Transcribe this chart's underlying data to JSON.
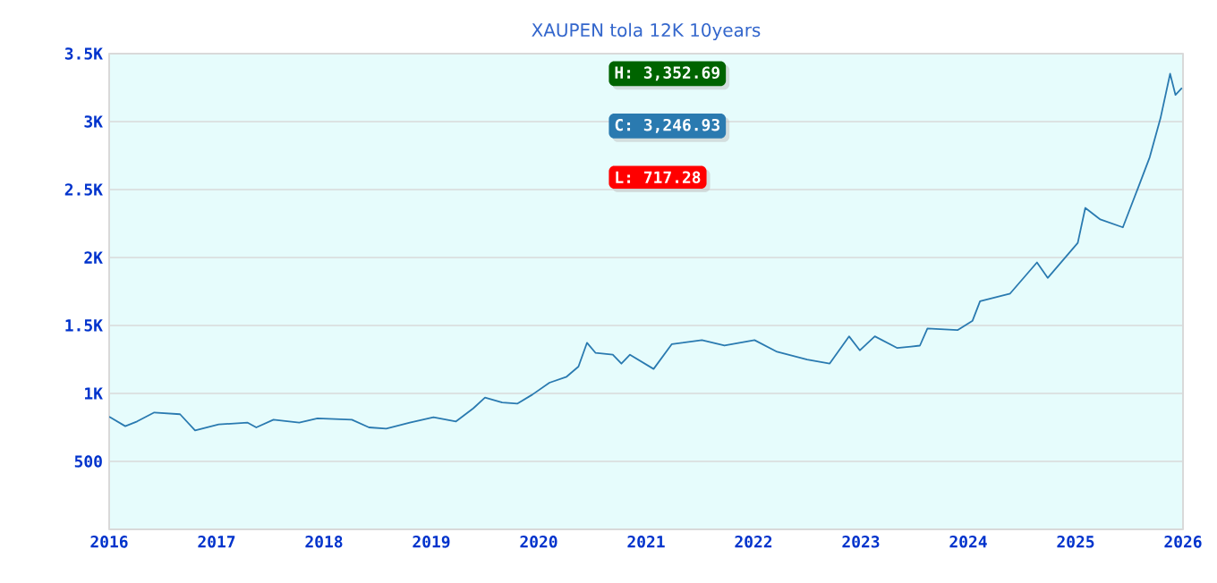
{
  "chart_data": {
    "type": "line",
    "title": "XAUPEN tola 12K 10years",
    "xlim": [
      2016,
      2026
    ],
    "xticks": [
      2016,
      2017,
      2018,
      2019,
      2020,
      2021,
      2022,
      2023,
      2024,
      2025,
      2026
    ],
    "ylim": [
      0,
      3500
    ],
    "yticks": [
      500,
      {
        "value": 1000,
        "label": "1K"
      },
      {
        "value": 1500,
        "label": "1.5K"
      },
      {
        "value": 2000,
        "label": "2K"
      },
      {
        "value": 2500,
        "label": "2.5K"
      },
      {
        "value": 3000,
        "label": "3K"
      },
      {
        "value": 3500,
        "label": "3.5K"
      }
    ],
    "grid": "y",
    "marker": "none",
    "line_style": "solid",
    "annotations": [
      "H: 3,352.69",
      "C: 3,246.93",
      "L: 717.28"
    ],
    "series": [
      {
        "color": "#2a7ab0",
        "x": [
          2016.0,
          2016.15,
          2016.26,
          2016.42,
          2016.66,
          2016.8,
          2017.02,
          2017.29,
          2017.37,
          2017.53,
          2017.77,
          2017.94,
          2018.26,
          2018.42,
          2018.58,
          2018.8,
          2019.02,
          2019.23,
          2019.39,
          2019.5,
          2019.66,
          2019.8,
          2019.94,
          2020.1,
          2020.26,
          2020.37,
          2020.45,
          2020.53,
          2020.69,
          2020.77,
          2020.85,
          2021.07,
          2021.24,
          2021.52,
          2021.73,
          2022.01,
          2022.22,
          2022.5,
          2022.71,
          2022.89,
          2022.99,
          2023.13,
          2023.34,
          2023.55,
          2023.62,
          2023.9,
          2024.04,
          2024.11,
          2024.39,
          2024.64,
          2024.74,
          2025.02,
          2025.09,
          2025.23,
          2025.44,
          2025.58,
          2025.69,
          2025.79,
          2025.88,
          2025.93,
          2025.99
        ],
        "values": [
          829,
          759,
          794,
          860,
          847,
          728,
          772,
          785,
          750,
          807,
          785,
          816,
          807,
          750,
          741,
          785,
          825,
          794,
          890,
          969,
          934,
          925,
          991,
          1079,
          1123,
          1197,
          1373,
          1298,
          1285,
          1219,
          1285,
          1180,
          1363,
          1392,
          1352,
          1392,
          1306,
          1249,
          1220,
          1420,
          1317,
          1420,
          1334,
          1352,
          1478,
          1466,
          1535,
          1678,
          1735,
          1964,
          1850,
          2108,
          2365,
          2280,
          2222,
          2509,
          2738,
          3024,
          3352,
          3196,
          3247
        ]
      }
    ]
  }
}
